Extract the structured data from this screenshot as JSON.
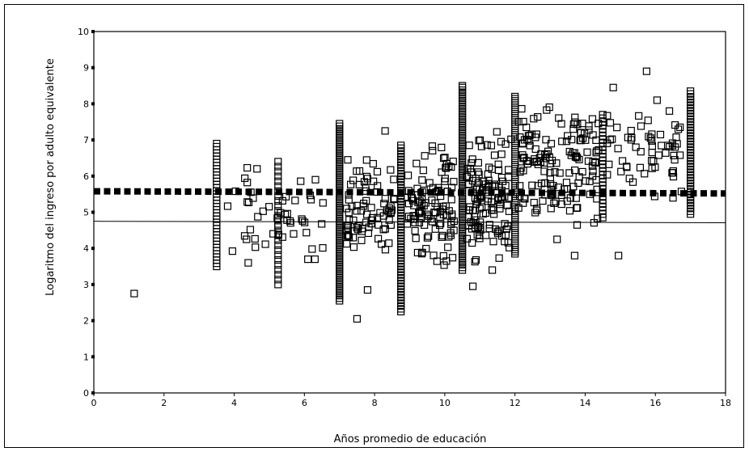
{
  "chart_data": {
    "type": "scatter",
    "title": "",
    "xlabel": "Años promedio de educación",
    "ylabel": "Logaritmo del ingreso por adulto equivalente",
    "xlim": [
      0,
      18
    ],
    "ylim": [
      0,
      10
    ],
    "x_ticks": [
      0,
      2,
      4,
      6,
      8,
      10,
      12,
      14,
      16,
      18
    ],
    "y_ticks": [
      0,
      1,
      2,
      3,
      4,
      5,
      6,
      7,
      8,
      9,
      10
    ],
    "grid": false,
    "legend": "none",
    "marker": "open-square",
    "colors": {
      "points": "#000000",
      "lines": "#000000",
      "background": "#ffffff"
    },
    "reference_lines": [
      {
        "style": "thick-dotted",
        "x": [
          0,
          18
        ],
        "y": [
          5.58,
          5.52
        ]
      },
      {
        "style": "solid-thin",
        "x": [
          0,
          18
        ],
        "y": [
          4.75,
          4.71
        ]
      }
    ],
    "columns": [
      {
        "x": 3.5,
        "y_min": 3.5,
        "y_max": 6.9,
        "n": 40
      },
      {
        "x": 5.25,
        "y_min": 3.0,
        "y_max": 6.4,
        "n": 26
      },
      {
        "x": 7.0,
        "y_min": 2.55,
        "y_max": 7.45,
        "n": 70
      },
      {
        "x": 8.75,
        "y_min": 2.25,
        "y_max": 6.85,
        "n": 60
      },
      {
        "x": 10.5,
        "y_min": 3.4,
        "y_max": 8.45,
        "n": 70
      },
      {
        "x": 12.0,
        "y_min": 3.85,
        "y_max": 8.2,
        "n": 75
      },
      {
        "x": 14.5,
        "y_min": 4.85,
        "y_max": 7.7,
        "n": 30
      },
      {
        "x": 17.0,
        "y_min": 4.95,
        "y_max": 8.35,
        "n": 45
      }
    ],
    "isolated_points": [
      {
        "x": 1.15,
        "y": 2.75
      },
      {
        "x": 4.35,
        "y": 4.25
      },
      {
        "x": 4.4,
        "y": 3.6
      },
      {
        "x": 6.1,
        "y": 3.7
      },
      {
        "x": 6.3,
        "y": 3.7
      },
      {
        "x": 7.5,
        "y": 2.05
      },
      {
        "x": 7.8,
        "y": 2.85
      },
      {
        "x": 10.8,
        "y": 2.95
      },
      {
        "x": 13.2,
        "y": 4.25
      },
      {
        "x": 13.7,
        "y": 3.8
      },
      {
        "x": 14.95,
        "y": 3.8
      },
      {
        "x": 14.8,
        "y": 8.45
      },
      {
        "x": 15.75,
        "y": 8.9
      },
      {
        "x": 16.05,
        "y": 8.1
      },
      {
        "x": 16.4,
        "y": 7.8
      },
      {
        "x": 4.65,
        "y": 6.2
      },
      {
        "x": 8.3,
        "y": 7.25
      },
      {
        "x": 10.5,
        "y": 8.5
      }
    ],
    "scatter_regions": [
      {
        "x_range": [
          3.8,
          6.8
        ],
        "y_range": [
          3.7,
          6.3
        ],
        "n": 45
      },
      {
        "x_range": [
          7.2,
          8.6
        ],
        "y_range": [
          3.6,
          6.6
        ],
        "n": 80
      },
      {
        "x_range": [
          8.9,
          10.3
        ],
        "y_range": [
          3.4,
          6.9
        ],
        "n": 110
      },
      {
        "x_range": [
          10.6,
          11.9
        ],
        "y_range": [
          3.3,
          7.4
        ],
        "n": 130
      },
      {
        "x_range": [
          12.1,
          14.4
        ],
        "y_range": [
          4.5,
          8.1
        ],
        "n": 150
      },
      {
        "x_range": [
          14.6,
          16.8
        ],
        "y_range": [
          5.3,
          8.0
        ],
        "n": 60
      }
    ]
  }
}
